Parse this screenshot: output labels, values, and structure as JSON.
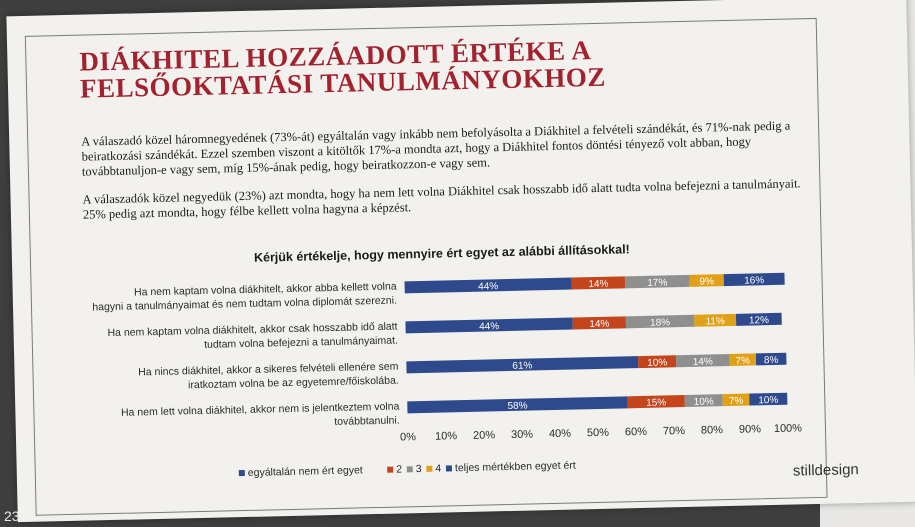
{
  "page_number": "23",
  "title_line1": "DIÁKHITEL HOZZÁADOTT ÉRTÉKE A",
  "title_line2": "FELSŐOKTATÁSI TANULMÁNYOKHOZ",
  "paragraph1": "A válaszadó közel háromnegyedének (73%-át) egyáltalán vagy inkább nem befolyásolta a Diákhitel a felvételi szándékát, és 71%-nak pedig a beiratkozási szándékát. Ezzel szemben viszont a kitöltők 17%-a mondta azt, hogy a Diákhitel fontos döntési tényező volt abban, hogy továbbtanuljon-e vagy sem, míg 15%-ának pedig, hogy beiratkozzon-e vagy sem.",
  "paragraph2": "A válaszadók közel negyedük (23%) azt mondta, hogy ha nem lett volna Diákhitel csak hosszabb idő alatt tudta volna befejezni a tanulmányait. 25% pedig azt mondta, hogy félbe kellett volna hagyna a képzést.",
  "logo_text": "stilldesign",
  "colors": {
    "title": "#a2222f",
    "s1": "#2e4a8c",
    "s2": "#c4451c",
    "s3": "#8f8f8f",
    "s4": "#e0a118",
    "s5": "#2e4a8c"
  },
  "chart_data": {
    "type": "bar",
    "orientation": "horizontal",
    "stacked": true,
    "title": "Kérjük értékelje, hogy mennyire ért egyet az alábbi állításokkal!",
    "categories": [
      "Ha nem kaptam volna diákhitelt, akkor abba kellett volna hagyni a tanulmányaimat és nem tudtam volna diplomát szerezni.",
      "Ha nem kaptam volna diákhitelt, akkor csak hosszabb idő alatt tudtam volna befejezni a tanulmányaimat.",
      "Ha nincs diákhitel, akkor a sikeres felvételi ellenére sem iratkoztam volna be az egyetemre/főiskolába.",
      "Ha nem lett volna diákhitel, akkor nem is jelentkeztem volna továbbtanulni."
    ],
    "series": [
      {
        "name": "egyáltalán nem ért egyet",
        "values": [
          44,
          44,
          61,
          58
        ],
        "labels": [
          "44%",
          "44%",
          "61%",
          "58%"
        ]
      },
      {
        "name": "2",
        "values": [
          14,
          14,
          10,
          15
        ],
        "labels": [
          "14%",
          "14%",
          "10%",
          "15%"
        ]
      },
      {
        "name": "3",
        "values": [
          17,
          18,
          14,
          10
        ],
        "labels": [
          "17%",
          "18%",
          "14%",
          "10%"
        ]
      },
      {
        "name": "4",
        "values": [
          9,
          11,
          7,
          7
        ],
        "labels": [
          "9%",
          "11%",
          "7%",
          "7%"
        ]
      },
      {
        "name": "teljes mértékben egyet ért",
        "values": [
          16,
          12,
          8,
          10
        ],
        "labels": [
          "16%",
          "12%",
          "8%",
          "10%"
        ]
      }
    ],
    "xlim": [
      0,
      100
    ],
    "x_ticks": [
      "0%",
      "10%",
      "20%",
      "30%",
      "40%",
      "50%",
      "60%",
      "70%",
      "80%",
      "90%",
      "100%"
    ],
    "legend_position": "bottom"
  }
}
